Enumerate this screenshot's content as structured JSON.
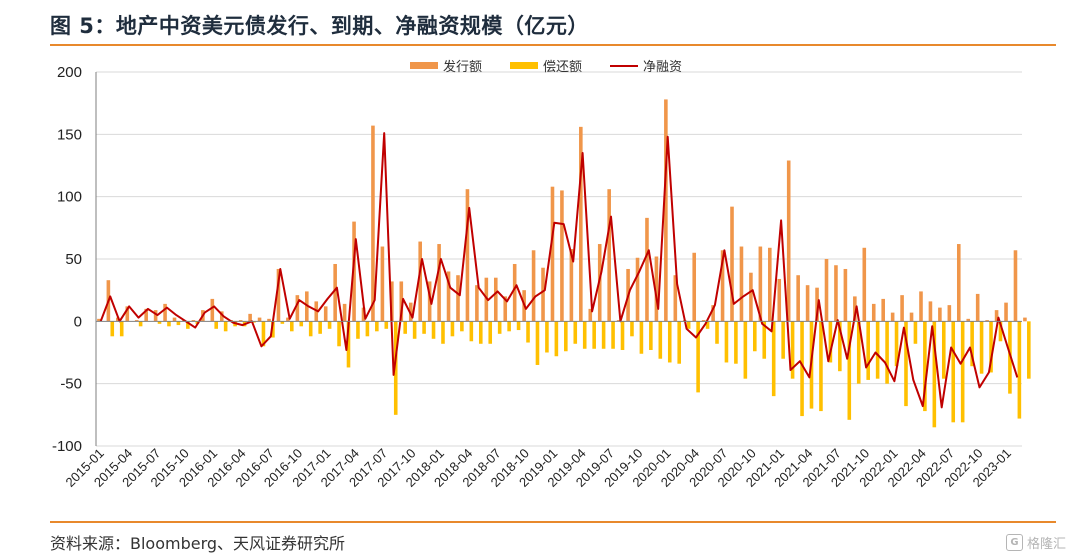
{
  "header": {
    "title": "图 5：地产中资美元债发行、到期、净融资规模（亿元）"
  },
  "footer": {
    "source": "资料来源：Bloomberg、天风证券研究所"
  },
  "watermark": {
    "badge": "G",
    "text": "格隆汇"
  },
  "colors": {
    "issuance": "#f0964a",
    "repayment": "#ffc000",
    "net": "#c00000",
    "rule": "#e8892c",
    "grid": "#d9d9d9"
  },
  "chart_data": {
    "type": "bar",
    "title": "",
    "xlabel": "",
    "ylabel": "",
    "ylim": [
      -100,
      200
    ],
    "yticks": [
      -100,
      -50,
      0,
      50,
      100,
      150,
      200
    ],
    "grid": true,
    "legend_position": "top",
    "tick_labels": [
      "2015-01",
      "2015-04",
      "2015-07",
      "2015-10",
      "2016-01",
      "2016-04",
      "2016-07",
      "2016-10",
      "2017-01",
      "2017-04",
      "2017-07",
      "2017-10",
      "2018-01",
      "2018-04",
      "2018-07",
      "2018-10",
      "2019-01",
      "2019-04",
      "2019-07",
      "2019-10",
      "2020-01",
      "2020-04",
      "2020-07",
      "2020-10",
      "2021-01",
      "2021-04",
      "2021-07",
      "2021-10",
      "2022-01",
      "2022-04",
      "2022-07",
      "2022-10",
      "2023-01"
    ],
    "tick_every": 3,
    "series": [
      {
        "name": "发行额",
        "type": "bar",
        "values": [
          2,
          33,
          3,
          12,
          1,
          10,
          9,
          14,
          3,
          1,
          1,
          9,
          18,
          8,
          1,
          1,
          6,
          3,
          2,
          42,
          3,
          21,
          24,
          16,
          12,
          46,
          14,
          80,
          11,
          157,
          60,
          32,
          32,
          15,
          64,
          32,
          62,
          40,
          37,
          106,
          29,
          35,
          35,
          20,
          46,
          25,
          57,
          43,
          108,
          105,
          58,
          156,
          10,
          62,
          106,
          1,
          42,
          51,
          83,
          52,
          178,
          37,
          1,
          55,
          1,
          13,
          57,
          92,
          60,
          39,
          60,
          59,
          34,
          129,
          37,
          29,
          27,
          50,
          45,
          42,
          20,
          59,
          14,
          18,
          7,
          21,
          7,
          24,
          16,
          11,
          13,
          62,
          2,
          22,
          1,
          9,
          15,
          57,
          3
        ]
      },
      {
        "name": "偿还额",
        "type": "bar",
        "values": [
          0,
          -12,
          -12,
          0,
          -4,
          0,
          -2,
          -4,
          -3,
          -6,
          -2,
          0,
          -6,
          -8,
          -4,
          -4,
          -1,
          -20,
          -13,
          -2,
          -8,
          -4,
          -12,
          -10,
          -6,
          -20,
          -37,
          -14,
          -12,
          -8,
          -6,
          -75,
          -10,
          -14,
          -10,
          -14,
          -18,
          -12,
          -8,
          -16,
          -18,
          -18,
          -10,
          -8,
          -7,
          -17,
          -35,
          -25,
          -28,
          -24,
          -18,
          -22,
          -22,
          -22,
          -22,
          -23,
          -12,
          -26,
          -23,
          -30,
          -33,
          -34,
          -6,
          -57,
          -6,
          -18,
          -33,
          -34,
          -46,
          -24,
          -30,
          -60,
          -30,
          -46,
          -76,
          -70,
          -72,
          -33,
          -40,
          -79,
          -50,
          -47,
          -46,
          -50,
          -36,
          -68,
          -18,
          -72,
          -85,
          -46,
          -81,
          -81,
          -36,
          -42,
          -41,
          -16,
          -58,
          -78,
          -46
        ]
      },
      {
        "name": "净融资",
        "type": "line",
        "values": [
          0,
          20,
          0,
          12,
          3,
          10,
          5,
          11,
          5,
          0,
          -5,
          7,
          12,
          4,
          -1,
          -3,
          0,
          -20,
          -12,
          42,
          2,
          17,
          12,
          8,
          18,
          27,
          -23,
          66,
          2,
          17,
          151,
          -43,
          18,
          3,
          50,
          14,
          50,
          27,
          21,
          91,
          27,
          17,
          24,
          16,
          29,
          10,
          20,
          25,
          79,
          78,
          48,
          135,
          8,
          40,
          84,
          0,
          25,
          40,
          57,
          10,
          148,
          30,
          -6,
          -13,
          -2,
          13,
          57,
          14,
          20,
          25,
          -2,
          -8,
          81,
          -39,
          -32,
          -45,
          17,
          -32,
          1,
          -30,
          12,
          -37,
          -25,
          -33,
          -48,
          -5,
          -47,
          -68,
          -4,
          -69,
          -21,
          -34,
          -21,
          -53,
          -41,
          3,
          -21,
          -45
        ]
      }
    ]
  }
}
